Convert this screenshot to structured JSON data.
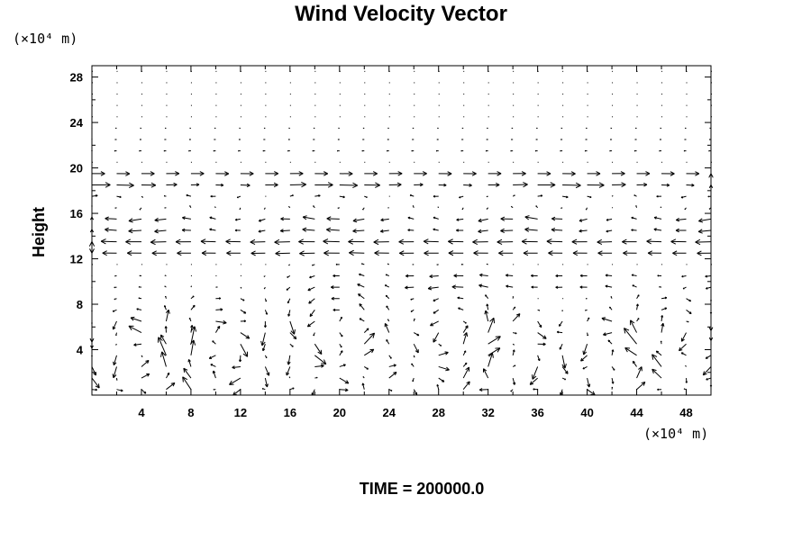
{
  "chart_data": {
    "type": "vector_field",
    "title": "Wind Velocity Vector",
    "ylabel": "Height",
    "y_unit": "(×10⁴ m)",
    "x_unit": "(×10⁴ m)",
    "xlim": [
      0,
      50
    ],
    "ylim": [
      0,
      29
    ],
    "x_ticks": [
      "4",
      "8",
      "12",
      "16",
      "20",
      "24",
      "28",
      "32",
      "36",
      "40",
      "44",
      "48"
    ],
    "y_ticks": [
      "4",
      "8",
      "12",
      "16",
      "20",
      "24",
      "28"
    ],
    "grid": false,
    "footer": "TIME = 200000.0",
    "note": "Vector field of horizontal wind velocity; strong eastward jet near height 19, westward flow near heights 13–16, and circulation cells below height 8."
  }
}
